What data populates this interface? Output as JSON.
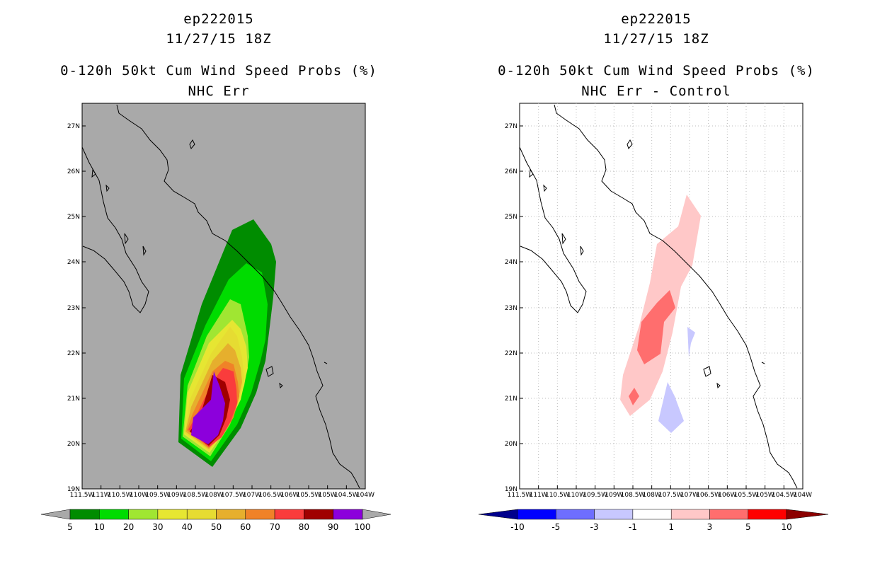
{
  "left_panel": {
    "storm_id": "ep222015",
    "datetime": "11/27/15 18Z",
    "product": "0-120h 50kt Cum Wind Speed Probs (%)",
    "subtitle": "NHC Err",
    "colorbar_labels": [
      "5",
      "10",
      "20",
      "30",
      "40",
      "50",
      "60",
      "70",
      "80",
      "90",
      "100"
    ],
    "colors": {
      "background": "#a9a9a9",
      "c5": "#008c00",
      "c10": "#00dc00",
      "c20": "#a0e632",
      "c30": "#e6e632",
      "c40": "#e6dc32",
      "c50": "#e6af2d",
      "c60": "#f08228",
      "c70": "#fa3c3c",
      "c80": "#a00000",
      "c90": "#8c00dc"
    }
  },
  "right_panel": {
    "storm_id": "ep222015",
    "datetime": "11/27/15 18Z",
    "product": "0-120h 50kt Cum Wind Speed Probs (%)",
    "subtitle": "NHC Err - Control",
    "colorbar_labels": [
      "-10",
      "-5",
      "-3",
      "-1",
      "1",
      "3",
      "5",
      "10"
    ],
    "colors": {
      "dblue": "#00008c",
      "blue": "#0000ff",
      "mblue": "#6e6eff",
      "lblue": "#c8c8ff",
      "lpink": "#ffc8c8",
      "mred": "#ff6e6e",
      "red": "#ff0000",
      "dred": "#8c0000"
    }
  },
  "map": {
    "lat_labels": [
      "27N",
      "26N",
      "25N",
      "24N",
      "23N",
      "22N",
      "21N",
      "20N",
      "19N"
    ],
    "lon_labels": [
      "111.5W",
      "111W",
      "110.5W",
      "110W",
      "109.5W",
      "109W",
      "108.5W",
      "108W",
      "107.5W",
      "107W",
      "106.5W",
      "106W",
      "105.5W",
      "105W",
      "104.5W",
      "104W"
    ]
  }
}
